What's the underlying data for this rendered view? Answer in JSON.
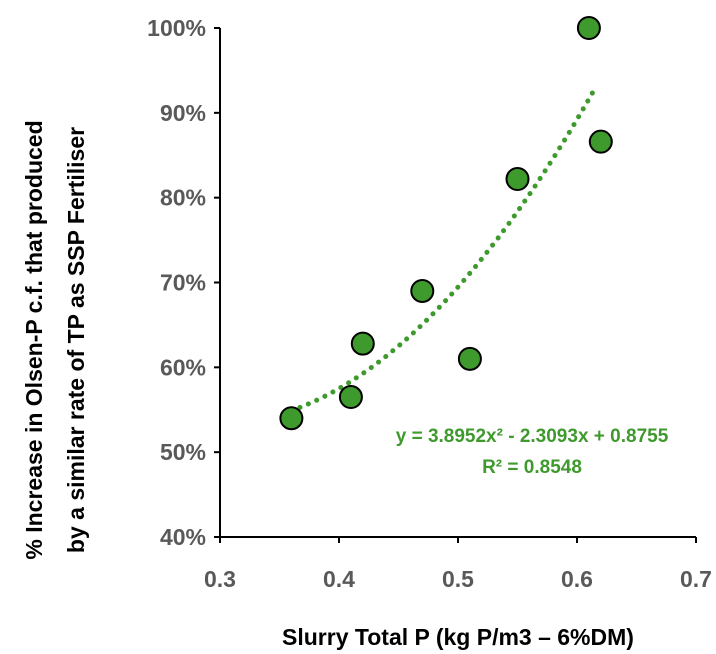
{
  "chart_data": {
    "type": "scatter",
    "xlabel": "Slurry Total P (kg P/m3 – 6%DM)",
    "ylabel_line1": "% Increase in Olsen-P c.f. that produced",
    "ylabel_line2": "by a similar rate of TP as SSP Fertiliser",
    "xlim": [
      0.3,
      0.7
    ],
    "ylim": [
      0.4,
      1.0
    ],
    "x_ticks": [
      "0.3",
      "0.4",
      "0.5",
      "0.6",
      "0.7"
    ],
    "y_ticks": [
      "40%",
      "50%",
      "60%",
      "70%",
      "80%",
      "90%",
      "100%"
    ],
    "points": [
      {
        "x": 0.36,
        "y": 0.54
      },
      {
        "x": 0.41,
        "y": 0.565
      },
      {
        "x": 0.42,
        "y": 0.628
      },
      {
        "x": 0.47,
        "y": 0.69
      },
      {
        "x": 0.51,
        "y": 0.61
      },
      {
        "x": 0.55,
        "y": 0.822
      },
      {
        "x": 0.61,
        "y": 1.0
      },
      {
        "x": 0.62,
        "y": 0.866
      }
    ],
    "trendline": {
      "type": "polynomial",
      "coefficients": [
        3.8952,
        -2.3093,
        0.8755
      ],
      "x_range": [
        0.36,
        0.615
      ],
      "equation": "y = 3.8952x² - 2.3093x + 0.8755",
      "r_squared": "R² = 0.8548"
    },
    "grid": false,
    "colors": {
      "marker_fill": "#3f9a2d",
      "marker_stroke": "#000000",
      "trendline": "#3f9a2d",
      "tick_label": "#595959",
      "axis_line": "#000000"
    }
  }
}
